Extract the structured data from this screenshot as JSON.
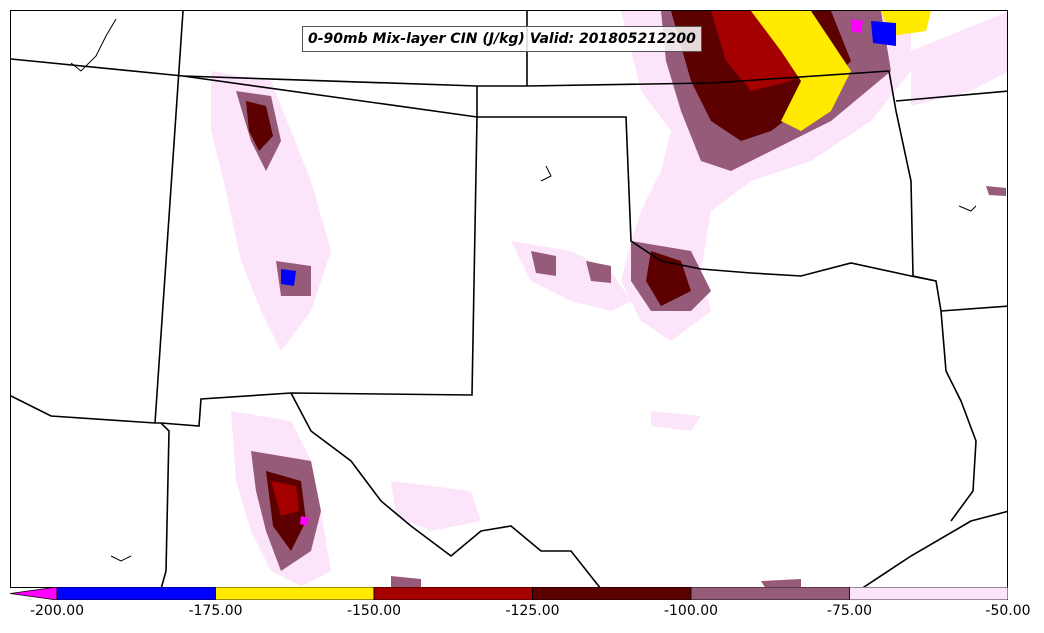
{
  "title": "0-90mb Mix-layer CIN (J/kg) Valid: 201805212200",
  "variable": "Mix-layer CIN",
  "units": "J/kg",
  "colorbar": {
    "ticks": [
      "-200.00",
      "-175.00",
      "-150.00",
      "-125.00",
      "-100.00",
      "-75.00",
      "-50.00"
    ],
    "bins": [
      {
        "range": [
          -225,
          -200
        ],
        "color": "#ff00ff"
      },
      {
        "range": [
          -200,
          -175
        ],
        "color": "#0000ff"
      },
      {
        "range": [
          -175,
          -150
        ],
        "color": "#ffea00"
      },
      {
        "range": [
          -150,
          -125
        ],
        "color": "#a50000"
      },
      {
        "range": [
          -125,
          -100
        ],
        "color": "#5c0000"
      },
      {
        "range": [
          -100,
          -75
        ],
        "color": "#955b78"
      },
      {
        "range": [
          -75,
          -50
        ],
        "color": "#fce4fa"
      }
    ]
  },
  "colors": {
    "border": "#000000",
    "background": "#ffffff"
  }
}
